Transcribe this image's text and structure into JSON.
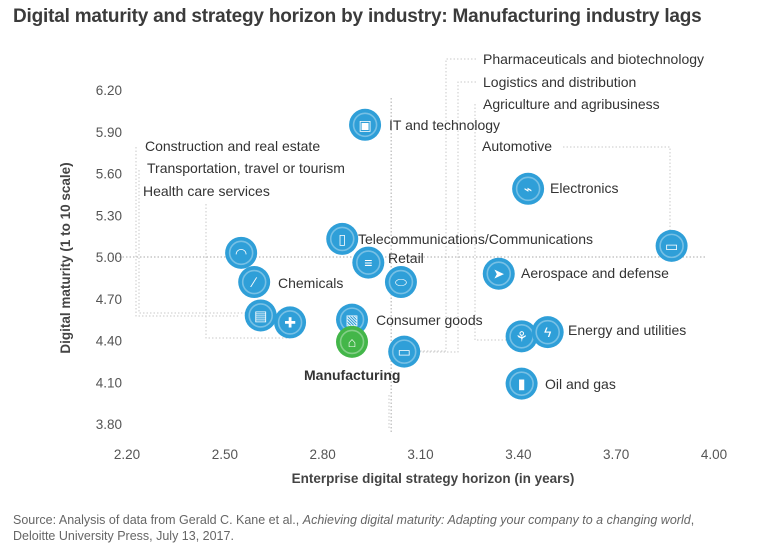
{
  "title": "Digital maturity and strategy horizon by industry: Manufacturing industry lags",
  "source": {
    "prefix": "Source: Analysis of data from Gerald C. Kane et al., ",
    "italic": "Achieving digital maturity: Adapting your company to a changing world",
    "suffix": ",",
    "line2": "Deloitte University Press, July 13, 2017."
  },
  "colors": {
    "bubble": "#2f9fd8",
    "highlight": "#43b649",
    "axis_text": "#555555",
    "grid": "#d8d8d8",
    "refline": "#aaaaaa"
  },
  "chart_data": {
    "type": "scatter",
    "title": "Digital maturity and strategy horizon by industry: Manufacturing industry lags",
    "xlabel": "Enterprise digital strategy horizon (in years)",
    "ylabel": "Digital maturity (1 to 10 scale)",
    "xlim": [
      2.2,
      4.0
    ],
    "ylim": [
      3.8,
      6.3
    ],
    "xticks": [
      "2.20",
      "2.50",
      "2.80",
      "3.10",
      "3.40",
      "3.70",
      "4.00"
    ],
    "yticks": [
      "3.80",
      "4.10",
      "4.40",
      "4.70",
      "5.00",
      "5.30",
      "5.60",
      "5.90",
      "6.20"
    ],
    "reference_lines": {
      "x": 3.01,
      "y": 5.0
    },
    "points": [
      {
        "name": "IT and technology",
        "x": 2.93,
        "y": 5.95,
        "icon": "chip-icon",
        "label_shown": true
      },
      {
        "name": "Electronics",
        "x": 3.43,
        "y": 5.49,
        "icon": "plug-icon",
        "label_shown": true
      },
      {
        "name": "Automotive",
        "x": 3.87,
        "y": 5.08,
        "icon": "car-icon",
        "label_shown": true
      },
      {
        "name": "Telecommunications/Communications",
        "x": 2.86,
        "y": 5.13,
        "icon": "phone-icon",
        "label_shown": true
      },
      {
        "name": "Retail",
        "x": 2.94,
        "y": 4.96,
        "icon": "cart-icon",
        "label_shown": true
      },
      {
        "name": "Construction and real estate",
        "x": 2.55,
        "y": 5.03,
        "icon": "hardhat-icon",
        "label_shown": true
      },
      {
        "name": "Chemicals",
        "x": 2.59,
        "y": 4.82,
        "icon": "testtube-icon",
        "label_shown": true
      },
      {
        "name": "Pharmaceuticals and biotechnology",
        "x": 3.04,
        "y": 4.82,
        "icon": "pill-icon",
        "label_shown": true
      },
      {
        "name": "Aerospace and defense",
        "x": 3.34,
        "y": 4.88,
        "icon": "rocket-icon",
        "label_shown": true
      },
      {
        "name": "Transportation, travel or tourism",
        "x": 2.61,
        "y": 4.58,
        "icon": "train-icon",
        "label_shown": true
      },
      {
        "name": "Health care services",
        "x": 2.7,
        "y": 4.53,
        "icon": "medkit-icon",
        "label_shown": true
      },
      {
        "name": "Consumer goods",
        "x": 2.89,
        "y": 4.55,
        "icon": "box-icon",
        "label_shown": true
      },
      {
        "name": "Manufacturing",
        "x": 2.89,
        "y": 4.39,
        "icon": "factory-icon",
        "label_shown": true,
        "highlight": true
      },
      {
        "name": "Logistics and distribution",
        "x": 3.05,
        "y": 4.32,
        "icon": "truck-icon",
        "label_shown": true
      },
      {
        "name": "Agriculture and agribusiness",
        "x": 3.41,
        "y": 4.43,
        "icon": "plant-icon",
        "label_shown": true
      },
      {
        "name": "Energy and utilities",
        "x": 3.49,
        "y": 4.46,
        "icon": "bolt-icon",
        "label_shown": true
      },
      {
        "name": "Oil and gas",
        "x": 3.41,
        "y": 4.09,
        "icon": "fuel-icon",
        "label_shown": true
      }
    ],
    "labels": {
      "it": "IT and technology",
      "electronics": "Electronics",
      "automotive": "Automotive",
      "telecom": "Telecommunications/Communications",
      "retail": "Retail",
      "construction": "Construction and real estate",
      "transportation": "Transportation, travel or tourism",
      "healthcare": "Health care services",
      "chemicals": "Chemicals",
      "pharma": "Pharmaceuticals and biotechnology",
      "logistics": "Logistics and distribution",
      "agriculture": "Agriculture and agribusiness",
      "aerospace": "Aerospace and defense",
      "energy": "Energy and utilities",
      "consumer": "Consumer goods",
      "manufacturing": "Manufacturing",
      "oilgas": "Oil and gas"
    }
  }
}
